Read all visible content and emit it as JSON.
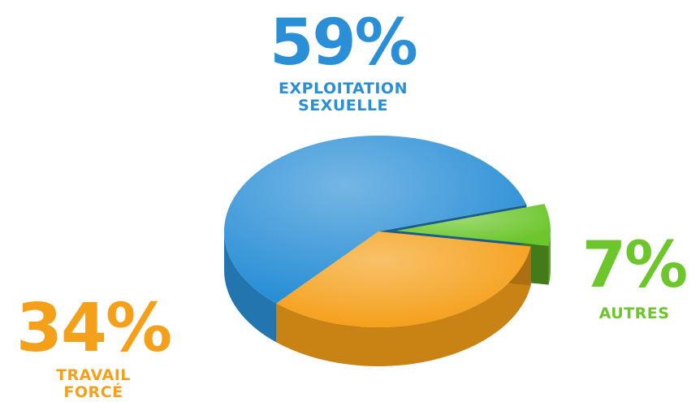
{
  "chart_data": {
    "type": "pie",
    "style": "3d",
    "slices": [
      {
        "label": "EXPLOITATION\nSEXUELLE",
        "value": 59,
        "value_label": "59%",
        "color": "#2a8fd6"
      },
      {
        "label": "AUTRES",
        "value": 7,
        "value_label": "7%",
        "color": "#6cc62c"
      },
      {
        "label": "TRAVAIL\nFORCÉ",
        "value": 34,
        "value_label": "34%",
        "color": "#f5a01a"
      }
    ]
  }
}
